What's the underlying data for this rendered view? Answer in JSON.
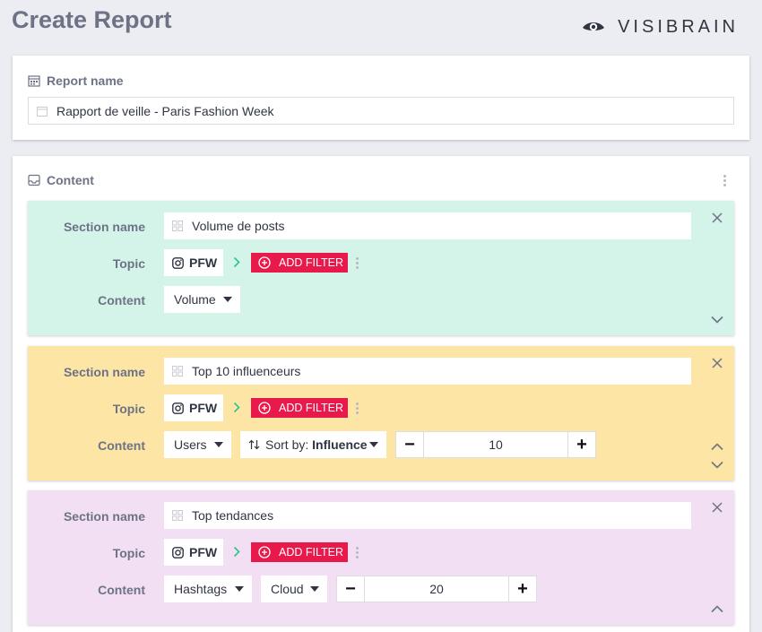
{
  "page": {
    "title": "Create Report"
  },
  "brand": {
    "name": "VISIBRAIN"
  },
  "report": {
    "header": "Report name",
    "value": "Rapport de veille - Paris Fashion Week"
  },
  "content": {
    "header": "Content",
    "labels": {
      "section_name": "Section name",
      "topic": "Topic",
      "content": "Content"
    },
    "add_filter_label": "ADD FILTER",
    "sections": [
      {
        "color": "#d4f3e9",
        "name": "Volume de posts",
        "topic": "PFW",
        "content_type": "Volume"
      },
      {
        "color": "#fde6a5",
        "name": "Top 10 influenceurs",
        "topic": "PFW",
        "content_type": "Users",
        "sort_prefix": "Sort by: ",
        "sort_value": "Influence",
        "count": "10"
      },
      {
        "color": "#f2dff3",
        "name": "Top tendances",
        "topic": "PFW",
        "content_type": "Hashtags",
        "display": "Cloud",
        "count": "20"
      }
    ]
  },
  "colors": {
    "accent": "#e8194b",
    "chevron": "#2bc48a",
    "label": "#6d7385"
  }
}
